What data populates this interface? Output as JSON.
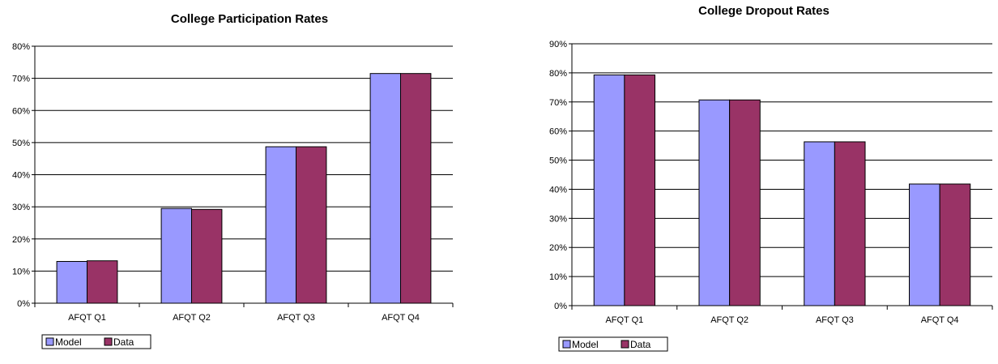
{
  "chart_data": [
    {
      "type": "bar",
      "title": "College Participation Rates",
      "xlabel": "",
      "ylabel": "",
      "categories": [
        "AFQT Q1",
        "AFQT Q2",
        "AFQT Q3",
        "AFQT Q4"
      ],
      "series": [
        {
          "name": "Model",
          "values": [
            0.13,
            0.295,
            0.487,
            0.715
          ],
          "color": "#9999ff"
        },
        {
          "name": "Data",
          "values": [
            0.132,
            0.292,
            0.487,
            0.715
          ],
          "color": "#993366"
        }
      ],
      "ylim": [
        0,
        0.8
      ],
      "yticks": [
        0,
        0.1,
        0.2,
        0.3,
        0.4,
        0.5,
        0.6,
        0.7,
        0.8
      ],
      "ytick_labels": [
        "0%",
        "10%",
        "20%",
        "30%",
        "40%",
        "50%",
        "60%",
        "70%",
        "80%"
      ],
      "grid": true,
      "legend": "bottom-left"
    },
    {
      "type": "bar",
      "title": "College Dropout Rates",
      "xlabel": "",
      "ylabel": "",
      "categories": [
        "AFQT Q1",
        "AFQT Q2",
        "AFQT Q3",
        "AFQT Q4"
      ],
      "series": [
        {
          "name": "Model",
          "values": [
            0.793,
            0.707,
            0.563,
            0.418
          ],
          "color": "#9999ff"
        },
        {
          "name": "Data",
          "values": [
            0.793,
            0.707,
            0.563,
            0.418
          ],
          "color": "#993366"
        }
      ],
      "ylim": [
        0,
        0.9
      ],
      "yticks": [
        0,
        0.1,
        0.2,
        0.3,
        0.4,
        0.5,
        0.6,
        0.7,
        0.8,
        0.9
      ],
      "ytick_labels": [
        "0%",
        "10%",
        "20%",
        "30%",
        "40%",
        "50%",
        "60%",
        "70%",
        "80%",
        "90%"
      ],
      "grid": true,
      "legend": "bottom-left"
    }
  ]
}
